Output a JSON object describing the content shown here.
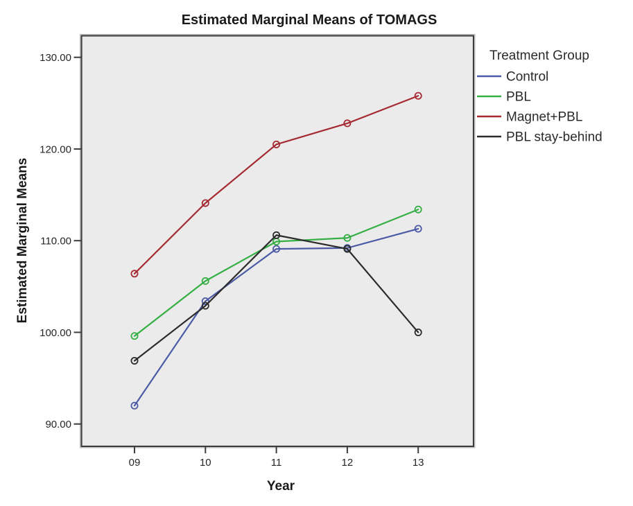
{
  "chart_data": {
    "type": "line",
    "title": "Estimated Marginal Means of TOMAGS",
    "xlabel": "Year",
    "ylabel": "Estimated Marginal Means",
    "legend_title": "Treatment Group",
    "legend_position": "right",
    "categories": [
      "09",
      "10",
      "11",
      "12",
      "13"
    ],
    "yticks": [
      "90.00",
      "100.00",
      "110.00",
      "120.00",
      "130.00"
    ],
    "ylim": [
      87.6,
      132.3
    ],
    "grid": false,
    "marker": "open-circle",
    "plot_background": "#EBEBEB",
    "frame_color": "#3D3D3D",
    "series": [
      {
        "name": "Control",
        "color": "#4A5AA5",
        "values": [
          92.0,
          103.4,
          109.1,
          109.2,
          111.3
        ]
      },
      {
        "name": "PBL",
        "color": "#35AF44",
        "values": [
          99.6,
          105.6,
          109.9,
          110.3,
          113.4
        ]
      },
      {
        "name": "Magnet+PBL",
        "color": "#A52A31",
        "values": [
          106.4,
          114.1,
          120.5,
          122.8,
          125.8
        ]
      },
      {
        "name": "PBL stay-behind",
        "color": "#2B2B2B",
        "values": [
          96.9,
          102.9,
          110.6,
          109.1,
          100.0
        ]
      }
    ]
  }
}
